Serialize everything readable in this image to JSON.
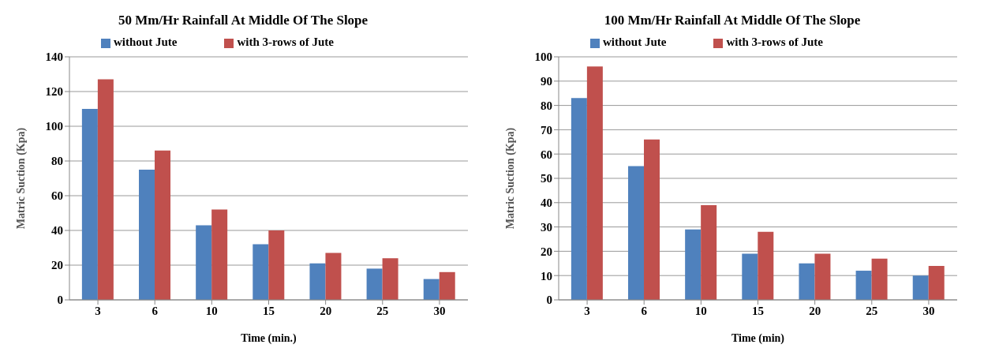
{
  "chart_data": [
    {
      "type": "bar",
      "title": "50 Mm/Hr Rainfall At Middle Of The Slope",
      "xlabel": "Time (min.)",
      "ylabel": "Matric Suction (Kpa)",
      "categories": [
        "3",
        "6",
        "10",
        "15",
        "20",
        "25",
        "30"
      ],
      "ylim": [
        0,
        140
      ],
      "yticks": [
        0,
        20,
        40,
        60,
        80,
        100,
        120,
        140
      ],
      "grid": "y",
      "legend": "top",
      "series": [
        {
          "name": "without Jute",
          "color": "#4f81bd",
          "values": [
            110,
            75,
            43,
            32,
            21,
            18,
            12
          ]
        },
        {
          "name": "with 3-rows of Jute",
          "color": "#c0504d",
          "values": [
            127,
            86,
            52,
            40,
            27,
            24,
            16
          ]
        }
      ]
    },
    {
      "type": "bar",
      "title": "100 Mm/Hr Rainfall At Middle Of The Slope",
      "xlabel": "Time (min)",
      "ylabel": "Matric Suction (Kpa)",
      "categories": [
        "3",
        "6",
        "10",
        "15",
        "20",
        "25",
        "30"
      ],
      "ylim": [
        0,
        100
      ],
      "yticks": [
        0,
        10,
        20,
        30,
        40,
        50,
        60,
        70,
        80,
        90,
        100
      ],
      "grid": "y",
      "legend": "top",
      "series": [
        {
          "name": "without Jute",
          "color": "#4f81bd",
          "values": [
            83,
            55,
            29,
            19,
            15,
            12,
            10
          ]
        },
        {
          "name": "with 3-rows of Jute",
          "color": "#c0504d",
          "values": [
            96,
            66,
            39,
            28,
            19,
            17,
            14
          ]
        }
      ]
    }
  ]
}
